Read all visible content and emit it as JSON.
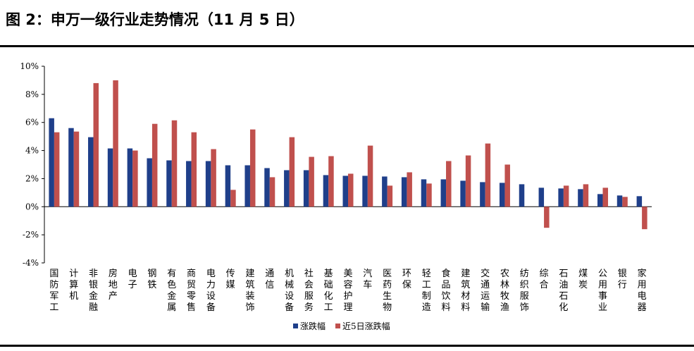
{
  "figure_title": "图 2：申万一级行业走势情况（11 月 5 日）",
  "chart_data": {
    "type": "bar",
    "categories": [
      "国防军工",
      "计算机",
      "非银金融",
      "房地产",
      "电子",
      "钢铁",
      "有色金属",
      "商贸零售",
      "电力设备",
      "传媒",
      "建筑装饰",
      "通信",
      "机械设备",
      "社会服务",
      "基础化工",
      "美容护理",
      "汽车",
      "医药生物",
      "环保",
      "轻工制造",
      "食品饮料",
      "建筑材料",
      "交通运输",
      "农林牧渔",
      "纺织服饰",
      "综合",
      "石油石化",
      "煤炭",
      "公用事业",
      "银行",
      "家用电器"
    ],
    "series": [
      {
        "name": "涨跌幅",
        "color": "#1f3f8a",
        "values": [
          6.3,
          5.6,
          4.95,
          4.15,
          4.15,
          3.45,
          3.3,
          3.25,
          3.25,
          2.95,
          2.95,
          2.75,
          2.6,
          2.6,
          2.25,
          2.2,
          2.2,
          2.15,
          2.1,
          1.95,
          1.95,
          1.85,
          1.75,
          1.7,
          1.6,
          1.35,
          1.3,
          1.25,
          0.9,
          0.8,
          0.75
        ]
      },
      {
        "name": "近5日涨跌幅",
        "color": "#c0504d",
        "values": [
          5.3,
          5.35,
          8.8,
          9.0,
          4.0,
          5.9,
          6.15,
          5.3,
          4.1,
          1.2,
          5.5,
          2.1,
          4.95,
          3.55,
          3.6,
          2.35,
          4.35,
          1.5,
          2.45,
          1.65,
          3.25,
          3.65,
          4.5,
          3.0,
          null,
          -1.5,
          1.5,
          1.6,
          1.35,
          0.7,
          -1.6
        ]
      }
    ],
    "ylim": [
      -4,
      10
    ],
    "yticks": [
      -4,
      -2,
      0,
      2,
      4,
      6,
      8,
      10
    ],
    "ytick_format": "{v}%",
    "grid": false,
    "legend_position": "bottom-center"
  }
}
